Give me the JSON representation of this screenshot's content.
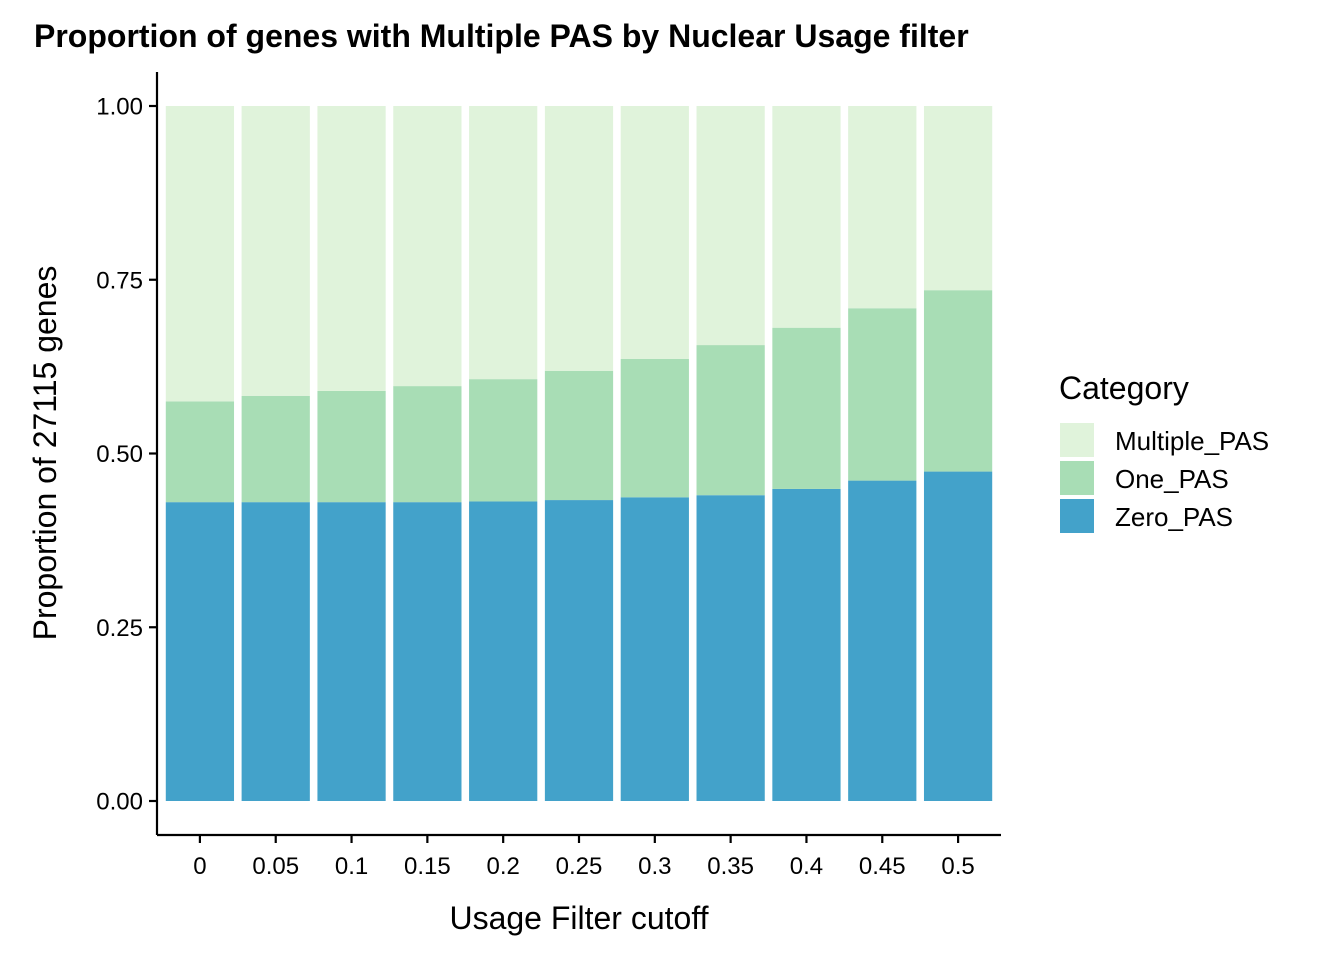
{
  "chart_data": {
    "type": "bar",
    "stacked": true,
    "title": "Proportion of genes with Multiple PAS by Nuclear Usage filter",
    "xlabel": "Usage Filter cutoff",
    "ylabel": "Proportion of 27115 genes",
    "ylim": [
      0,
      1
    ],
    "yticks": [
      "0.00",
      "0.25",
      "0.50",
      "0.75",
      "1.00"
    ],
    "categories": [
      "0",
      "0.05",
      "0.1",
      "0.15",
      "0.2",
      "0.25",
      "0.3",
      "0.35",
      "0.4",
      "0.45",
      "0.5"
    ],
    "series": [
      {
        "name": "Zero_PAS",
        "color": "#43a2ca",
        "values": [
          0.43,
          0.43,
          0.43,
          0.43,
          0.431,
          0.433,
          0.437,
          0.44,
          0.449,
          0.461,
          0.474
        ]
      },
      {
        "name": "One_PAS",
        "color": "#a8ddb5",
        "values": [
          0.145,
          0.153,
          0.16,
          0.167,
          0.176,
          0.186,
          0.199,
          0.216,
          0.232,
          0.248,
          0.261
        ]
      },
      {
        "name": "Multiple_PAS",
        "color": "#e0f3db",
        "values": [
          0.425,
          0.417,
          0.41,
          0.403,
          0.393,
          0.381,
          0.364,
          0.344,
          0.319,
          0.291,
          0.265
        ]
      }
    ],
    "grid": false,
    "legend": {
      "title": "Category",
      "position": "right",
      "order": [
        "Multiple_PAS",
        "One_PAS",
        "Zero_PAS"
      ]
    }
  }
}
